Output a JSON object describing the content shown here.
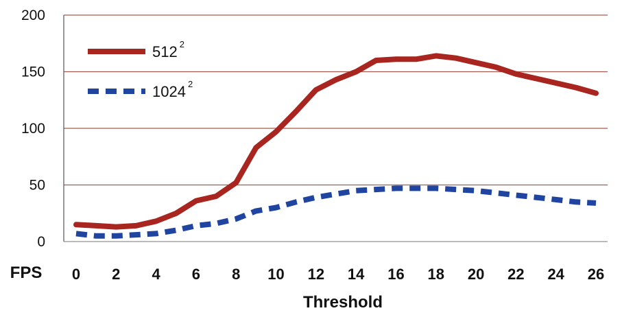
{
  "chart_data": {
    "type": "line",
    "ylabel": "FPS",
    "xlabel": "Threshold",
    "ylim": [
      0,
      200
    ],
    "xlim": [
      0,
      26
    ],
    "y_ticks": [
      "0",
      "50",
      "100",
      "150",
      "200"
    ],
    "x_ticks": [
      "0",
      "2",
      "4",
      "6",
      "8",
      "10",
      "12",
      "14",
      "16",
      "18",
      "20",
      "22",
      "24",
      "26"
    ],
    "grid": "horizontal",
    "legend_position": "top-left",
    "series": [
      {
        "name": "512",
        "name_superscript": "2",
        "color": "#a8261f",
        "dash": "solid",
        "x": [
          0,
          1,
          2,
          3,
          4,
          5,
          6,
          7,
          8,
          9,
          10,
          11,
          12,
          13,
          14,
          15,
          16,
          17,
          18,
          19,
          20,
          21,
          22,
          23,
          24,
          25,
          26
        ],
        "y": [
          15,
          14,
          13,
          14,
          18,
          25,
          36,
          40,
          52,
          83,
          97,
          115,
          134,
          143,
          150,
          160,
          161,
          161,
          164,
          162,
          158,
          154,
          148,
          144,
          140,
          136,
          131
        ]
      },
      {
        "name": "1024",
        "name_superscript": "2",
        "color": "#1f45a0",
        "dash": "dashed",
        "x": [
          0,
          1,
          2,
          3,
          4,
          5,
          6,
          7,
          8,
          9,
          10,
          11,
          12,
          13,
          14,
          15,
          16,
          17,
          18,
          19,
          20,
          21,
          22,
          23,
          24,
          25,
          26
        ],
        "y": [
          7,
          5,
          5,
          6,
          7,
          10,
          14,
          16,
          20,
          27,
          30,
          35,
          39,
          42,
          45,
          46,
          47,
          47,
          47,
          46,
          45,
          43,
          41,
          39,
          37,
          35,
          34
        ]
      }
    ]
  }
}
